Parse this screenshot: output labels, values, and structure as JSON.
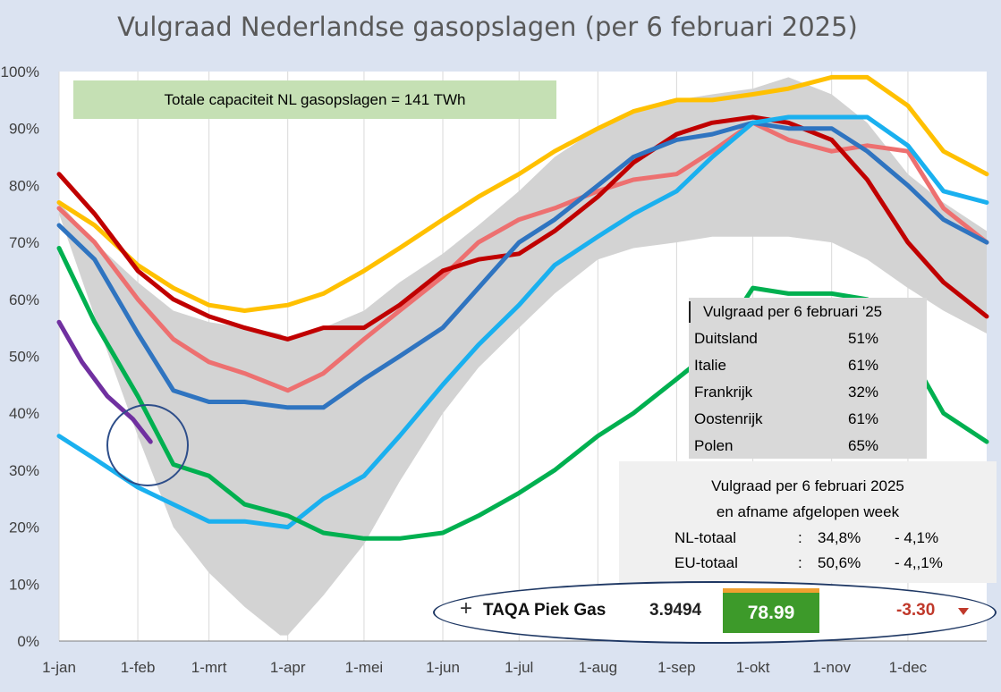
{
  "chart_data": {
    "type": "line",
    "title": "Vulgraad Nederlandse gasopslagen (per 6 februari 2025)",
    "xlabel": "",
    "ylabel": "",
    "x_ticks": [
      "1-jan",
      "1-feb",
      "1-mrt",
      "1-apr",
      "1-mei",
      "1-jun",
      "1-jul",
      "1-aug",
      "1-sep",
      "1-okt",
      "1-nov",
      "1-dec"
    ],
    "y_ticks": [
      "0%",
      "10%",
      "20%",
      "30%",
      "40%",
      "50%",
      "60%",
      "70%",
      "80%",
      "90%",
      "100%"
    ],
    "ylim": [
      0,
      100
    ],
    "xlim_days": [
      1,
      366
    ],
    "grid": "vertical",
    "band": {
      "color": "#d3d3d3",
      "x": [
        1,
        15,
        32,
        46,
        60,
        74,
        88,
        91,
        105,
        121,
        135,
        152,
        166,
        182,
        196,
        213,
        227,
        244,
        258,
        274,
        288,
        305,
        319,
        335,
        349,
        366
      ],
      "upper": [
        77,
        70,
        63,
        58,
        56,
        55,
        54,
        53,
        55,
        58,
        63,
        68,
        73,
        79,
        85,
        90,
        93,
        95,
        96,
        97,
        99,
        96,
        91,
        82,
        77,
        72
      ],
      "lower": [
        75,
        57,
        36,
        20,
        12,
        6,
        1,
        1,
        8,
        17,
        28,
        40,
        48,
        55,
        61,
        67,
        69,
        70,
        71,
        71,
        71,
        70,
        67,
        62,
        58,
        54
      ]
    },
    "series": [
      {
        "color": "#ffc000",
        "x": [
          1,
          15,
          32,
          46,
          60,
          74,
          91,
          105,
          121,
          135,
          152,
          166,
          182,
          196,
          213,
          227,
          244,
          258,
          274,
          288,
          305,
          319,
          335,
          349,
          366
        ],
        "y": [
          77,
          73,
          66,
          62,
          59,
          58,
          59,
          61,
          65,
          69,
          74,
          78,
          82,
          86,
          90,
          93,
          95,
          95,
          96,
          97,
          99,
          99,
          94,
          86,
          82
        ]
      },
      {
        "color": "#ed7070",
        "x": [
          1,
          15,
          32,
          46,
          60,
          74,
          91,
          105,
          121,
          135,
          152,
          166,
          182,
          196,
          213,
          227,
          244,
          258,
          274,
          288,
          305,
          319,
          335,
          349,
          366
        ],
        "y": [
          76,
          70,
          60,
          53,
          49,
          47,
          44,
          47,
          53,
          58,
          64,
          70,
          74,
          76,
          79,
          81,
          82,
          86,
          91,
          88,
          86,
          87,
          86,
          76,
          70
        ]
      },
      {
        "color": "#c00000",
        "x": [
          1,
          15,
          32,
          46,
          60,
          74,
          91,
          105,
          121,
          135,
          152,
          166,
          182,
          196,
          213,
          227,
          244,
          258,
          274,
          288,
          305,
          319,
          335,
          349,
          366
        ],
        "y": [
          82,
          75,
          65,
          60,
          57,
          55,
          53,
          55,
          55,
          59,
          65,
          67,
          68,
          72,
          78,
          84,
          89,
          91,
          92,
          91,
          88,
          81,
          70,
          63,
          57
        ]
      },
      {
        "color": "#2f74c0",
        "x": [
          1,
          15,
          32,
          46,
          60,
          74,
          91,
          105,
          121,
          135,
          152,
          166,
          182,
          196,
          213,
          227,
          244,
          258,
          274,
          288,
          305,
          319,
          335,
          349,
          366
        ],
        "y": [
          73,
          67,
          54,
          44,
          42,
          42,
          41,
          41,
          46,
          50,
          55,
          62,
          70,
          74,
          80,
          85,
          88,
          89,
          91,
          90,
          90,
          86,
          80,
          74,
          70
        ]
      },
      {
        "color": "#1ab0ef",
        "x": [
          1,
          15,
          32,
          46,
          60,
          74,
          91,
          105,
          121,
          135,
          152,
          166,
          182,
          196,
          213,
          227,
          244,
          258,
          274,
          288,
          305,
          319,
          335,
          349,
          366
        ],
        "y": [
          36,
          32,
          27,
          24,
          21,
          21,
          20,
          25,
          29,
          36,
          45,
          52,
          59,
          66,
          71,
          75,
          79,
          85,
          91,
          92,
          92,
          92,
          87,
          79,
          77
        ]
      },
      {
        "color": "#00b050",
        "x": [
          1,
          15,
          32,
          46,
          60,
          74,
          91,
          105,
          121,
          135,
          152,
          166,
          182,
          196,
          213,
          227,
          244,
          258,
          274,
          288,
          305,
          319,
          335,
          349,
          366
        ],
        "y": [
          69,
          56,
          43,
          31,
          29,
          24,
          22,
          19,
          18,
          18,
          19,
          22,
          26,
          30,
          36,
          40,
          46,
          51,
          62,
          61,
          61,
          60,
          51,
          40,
          35
        ]
      },
      {
        "color": "#7030a0",
        "x": [
          1,
          10,
          20,
          30,
          37
        ],
        "y": [
          56,
          49,
          43,
          39,
          35
        ]
      }
    ]
  },
  "capacity_note": "Totale capaciteit NL gasopslagen = 141 TWh",
  "country_table": {
    "header": "Vulgraad per 6 februari '25",
    "rows": [
      {
        "name": "Duitsland",
        "value": "51%"
      },
      {
        "name": "Italie",
        "value": "61%"
      },
      {
        "name": "Frankrijk",
        "value": "32%"
      },
      {
        "name": "Oostenrijk",
        "value": "61%"
      },
      {
        "name": "Polen",
        "value": "65%"
      }
    ]
  },
  "summary_box": {
    "line1": "Vulgraad per 6 februari 2025",
    "line2": "en afname afgelopen week",
    "nl_label": "NL-totaal",
    "nl_sep": ":",
    "nl_value": "34,8%",
    "nl_change": "- 4,1%",
    "eu_label": "EU-totaal",
    "eu_sep": ":",
    "eu_value": "50,6%",
    "eu_change": "- 4,,1%"
  },
  "ticker": {
    "plus": "+",
    "name": "TAQA Piek Gas",
    "price": "3.9494",
    "fill": "78.99",
    "change": "-3.30",
    "fill_color": "#3d9a2a",
    "change_color": "#c0392b"
  }
}
